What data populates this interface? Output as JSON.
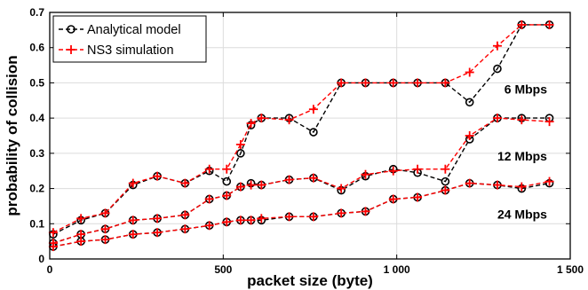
{
  "chart_data": {
    "type": "line",
    "title": "",
    "xlabel": "packet size (byte)",
    "ylabel": "probability of collision",
    "xlim": [
      0,
      1500
    ],
    "ylim": [
      0,
      0.7
    ],
    "xticks": [
      0,
      500,
      1000,
      1500
    ],
    "xtick_labels": [
      "0",
      "500",
      "1 000",
      "1 500"
    ],
    "yticks": [
      0,
      0.1,
      0.2,
      0.3,
      0.4,
      0.5,
      0.6,
      0.7
    ],
    "ytick_labels": [
      "0",
      "0.1",
      "0.2",
      "0.3",
      "0.4",
      "0.5",
      "0.6",
      "0.7"
    ],
    "grid": true,
    "legend_position": "top-left",
    "legend": [
      {
        "label": "Analytical model",
        "color": "#000000",
        "marker": "circle"
      },
      {
        "label": "NS3 simulation",
        "color": "#ff0000",
        "marker": "plus"
      }
    ],
    "annotations": [
      {
        "text": "6 Mbps",
        "x": 1310,
        "y": 0.47
      },
      {
        "text": "12 Mbps",
        "x": 1290,
        "y": 0.28
      },
      {
        "text": "24 Mbps",
        "x": 1290,
        "y": 0.115
      }
    ],
    "series": [
      {
        "group": "6 Mbps",
        "name": "Analytical model",
        "x": [
          10,
          90,
          160,
          240,
          310,
          390,
          460,
          510,
          550,
          580,
          610,
          690,
          760,
          840,
          910,
          990,
          1060,
          1140,
          1210,
          1290,
          1360,
          1440
        ],
        "y": [
          0.07,
          0.11,
          0.13,
          0.21,
          0.235,
          0.215,
          0.25,
          0.22,
          0.3,
          0.38,
          0.4,
          0.4,
          0.36,
          0.5,
          0.5,
          0.5,
          0.5,
          0.5,
          0.445,
          0.54,
          0.665,
          0.665
        ]
      },
      {
        "group": "6 Mbps",
        "name": "NS3 simulation",
        "x": [
          10,
          90,
          160,
          240,
          310,
          390,
          460,
          510,
          550,
          580,
          610,
          690,
          760,
          840,
          910,
          990,
          1060,
          1140,
          1210,
          1290,
          1360,
          1440
        ],
        "y": [
          0.075,
          0.115,
          0.13,
          0.215,
          0.235,
          0.215,
          0.255,
          0.255,
          0.325,
          0.385,
          0.4,
          0.395,
          0.425,
          0.5,
          0.5,
          0.5,
          0.5,
          0.5,
          0.53,
          0.605,
          0.665,
          0.665
        ]
      },
      {
        "group": "12 Mbps",
        "name": "Analytical model",
        "x": [
          10,
          90,
          160,
          240,
          310,
          390,
          460,
          510,
          550,
          580,
          610,
          690,
          760,
          840,
          910,
          990,
          1060,
          1140,
          1210,
          1290,
          1360,
          1440
        ],
        "y": [
          0.045,
          0.07,
          0.085,
          0.11,
          0.115,
          0.125,
          0.17,
          0.18,
          0.205,
          0.215,
          0.21,
          0.225,
          0.23,
          0.195,
          0.235,
          0.255,
          0.245,
          0.22,
          0.34,
          0.4,
          0.4,
          0.4
        ]
      },
      {
        "group": "12 Mbps",
        "name": "NS3 simulation",
        "x": [
          10,
          90,
          160,
          240,
          310,
          390,
          460,
          510,
          550,
          580,
          610,
          690,
          760,
          840,
          910,
          990,
          1060,
          1140,
          1210,
          1290,
          1360,
          1440
        ],
        "y": [
          0.045,
          0.07,
          0.085,
          0.11,
          0.115,
          0.125,
          0.17,
          0.18,
          0.205,
          0.21,
          0.21,
          0.225,
          0.23,
          0.2,
          0.24,
          0.25,
          0.255,
          0.255,
          0.35,
          0.4,
          0.395,
          0.39
        ]
      },
      {
        "group": "24 Mbps",
        "name": "Analytical model",
        "x": [
          10,
          90,
          160,
          240,
          310,
          390,
          460,
          510,
          550,
          580,
          610,
          690,
          760,
          840,
          910,
          990,
          1060,
          1140,
          1210,
          1290,
          1360,
          1440
        ],
        "y": [
          0.035,
          0.05,
          0.055,
          0.07,
          0.075,
          0.085,
          0.095,
          0.105,
          0.11,
          0.11,
          0.11,
          0.12,
          0.12,
          0.13,
          0.135,
          0.17,
          0.175,
          0.195,
          0.215,
          0.21,
          0.2,
          0.215
        ]
      },
      {
        "group": "24 Mbps",
        "name": "NS3 simulation",
        "x": [
          10,
          90,
          160,
          240,
          310,
          390,
          460,
          510,
          550,
          580,
          610,
          690,
          760,
          840,
          910,
          990,
          1060,
          1140,
          1210,
          1290,
          1360,
          1440
        ],
        "y": [
          0.035,
          0.05,
          0.055,
          0.07,
          0.075,
          0.085,
          0.095,
          0.105,
          0.11,
          0.11,
          0.115,
          0.12,
          0.12,
          0.13,
          0.135,
          0.17,
          0.175,
          0.195,
          0.215,
          0.21,
          0.205,
          0.22
        ]
      }
    ]
  }
}
